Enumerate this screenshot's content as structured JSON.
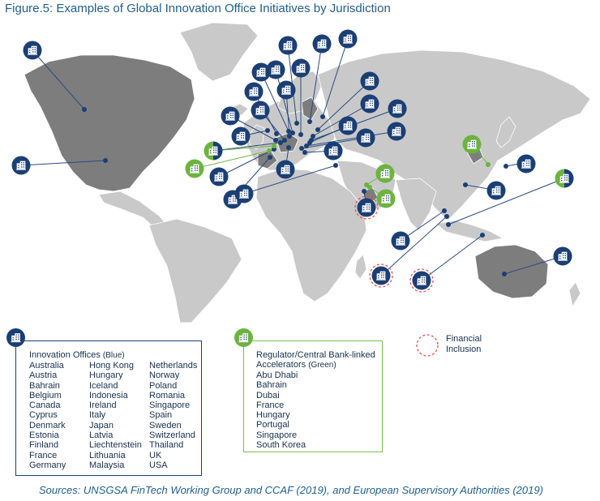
{
  "title": "Figure.5: Examples of Global Innovation Office Initiatives by Jurisdiction",
  "icons": {
    "office": "office-building-icon",
    "financial_inclusion": "dashed-circle-icon"
  },
  "colors": {
    "title": "#1f5e8c",
    "land": "#c9c9c9",
    "highlighted_land": "#7d7d7d",
    "borders": "#ffffff",
    "innovation_office": "#1b3f74",
    "accelerator": "#6db33f",
    "financial_inclusion": "#e55050",
    "leader_line": "#2a4a82",
    "accelerator_line": "#6db33f"
  },
  "legend": {
    "innovation_offices": {
      "title": "Innovation Offices",
      "qualifier": "(Blue)",
      "columns": [
        [
          "Australia",
          "Austria",
          "Bahrain",
          "Belgium",
          "Canada",
          "Cyprus",
          "Denmark",
          "Estonia",
          "Finland",
          "France",
          "Germany"
        ],
        [
          "Hong Kong",
          "Hungary",
          "Iceland",
          "Indonesia",
          "Ireland",
          "Italy",
          "Japan",
          "Latvia",
          "Liechtenstein",
          "Lithuania",
          "Malaysia"
        ],
        [
          "Netherlands",
          "Norway",
          "Poland",
          "Romania",
          "Singapore",
          "Spain",
          "Sweden",
          "Switzerland",
          "Thailand",
          "UK",
          "USA"
        ]
      ]
    },
    "accelerators": {
      "title_line_1": "Regulator/Central Bank-linked",
      "title_line_2": "Accelerators",
      "qualifier": "(Green)",
      "items": [
        "Abu Dhabi",
        "Bahrain",
        "Dubai",
        "France",
        "Hungary",
        "Portugal",
        "Singapore",
        "South Korea"
      ]
    },
    "financial_inclusion": "Financial\nInclusion"
  },
  "sources": "Sources: UNSGSA FinTech Working Group and CCAF (2019), and European Supervisory Authorities (2019)"
}
